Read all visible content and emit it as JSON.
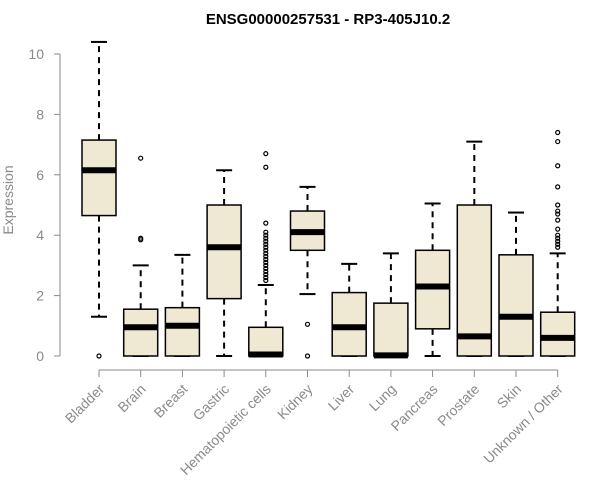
{
  "chart_data": {
    "type": "box",
    "title": "ENSG00000257531 - RP3-405J10.2",
    "xlabel": "",
    "ylabel": "Expression",
    "ylim": [
      0,
      10.5
    ],
    "yticks": [
      "0",
      "2",
      "4",
      "6",
      "8",
      "10"
    ],
    "colors": {
      "box_fill": "#efe8d2",
      "box_stroke": "#000000",
      "axis": "#8a8a8a",
      "label": "#8a8a8a"
    },
    "categories": [
      "Bladder",
      "Brain",
      "Breast",
      "Gastric",
      "Hematopoietic cells",
      "Kidney",
      "Liver",
      "Lung",
      "Pancreas",
      "Prostate",
      "Skin",
      "Unknown / Other"
    ],
    "boxes": [
      {
        "name": "Bladder",
        "whisker_low": 1.3,
        "q1": 4.65,
        "median": 6.15,
        "q3": 7.15,
        "whisker_high": 10.4,
        "outliers": [
          0.0
        ]
      },
      {
        "name": "Brain",
        "whisker_low": 0.0,
        "q1": 0.0,
        "median": 0.95,
        "q3": 1.55,
        "whisker_high": 3.0,
        "outliers": [
          3.85,
          3.9,
          6.55
        ]
      },
      {
        "name": "Breast",
        "whisker_low": 0.0,
        "q1": 0.0,
        "median": 1.0,
        "q3": 1.6,
        "whisker_high": 3.35,
        "outliers": []
      },
      {
        "name": "Gastric",
        "whisker_low": 0.0,
        "q1": 1.9,
        "median": 3.6,
        "q3": 5.0,
        "whisker_high": 6.15,
        "outliers": []
      },
      {
        "name": "Hematopoietic cells",
        "whisker_low": 0.0,
        "q1": 0.0,
        "median": 0.05,
        "q3": 0.95,
        "whisker_high": 2.35,
        "outliers": [
          2.5,
          2.6,
          2.7,
          2.8,
          2.9,
          3.0,
          3.1,
          3.2,
          3.3,
          3.4,
          3.5,
          3.6,
          3.7,
          3.8,
          3.9,
          4.0,
          4.1,
          4.4,
          6.25,
          6.7
        ]
      },
      {
        "name": "Kidney",
        "whisker_low": 2.05,
        "q1": 3.5,
        "median": 4.1,
        "q3": 4.8,
        "whisker_high": 5.6,
        "outliers": [
          1.05,
          0.0
        ]
      },
      {
        "name": "Liver",
        "whisker_low": 0.0,
        "q1": 0.0,
        "median": 0.95,
        "q3": 2.1,
        "whisker_high": 3.05,
        "outliers": []
      },
      {
        "name": "Lung",
        "whisker_low": 0.0,
        "q1": 0.0,
        "median": 0.02,
        "q3": 1.75,
        "whisker_high": 3.4,
        "outliers": []
      },
      {
        "name": "Pancreas",
        "whisker_low": 0.0,
        "q1": 0.9,
        "median": 2.3,
        "q3": 3.5,
        "whisker_high": 5.05,
        "outliers": []
      },
      {
        "name": "Prostate",
        "whisker_low": 0.0,
        "q1": 0.0,
        "median": 0.65,
        "q3": 5.0,
        "whisker_high": 7.1,
        "outliers": []
      },
      {
        "name": "Skin",
        "whisker_low": 0.0,
        "q1": 0.0,
        "median": 1.3,
        "q3": 3.35,
        "whisker_high": 4.75,
        "outliers": []
      },
      {
        "name": "Unknown / Other",
        "whisker_low": 0.0,
        "q1": 0.0,
        "median": 0.6,
        "q3": 1.45,
        "whisker_high": 3.4,
        "outliers": [
          3.6,
          3.7,
          3.8,
          3.9,
          4.0,
          4.2,
          4.5,
          4.7,
          4.8,
          5.0,
          5.6,
          6.3,
          7.1,
          7.4
        ]
      }
    ]
  }
}
